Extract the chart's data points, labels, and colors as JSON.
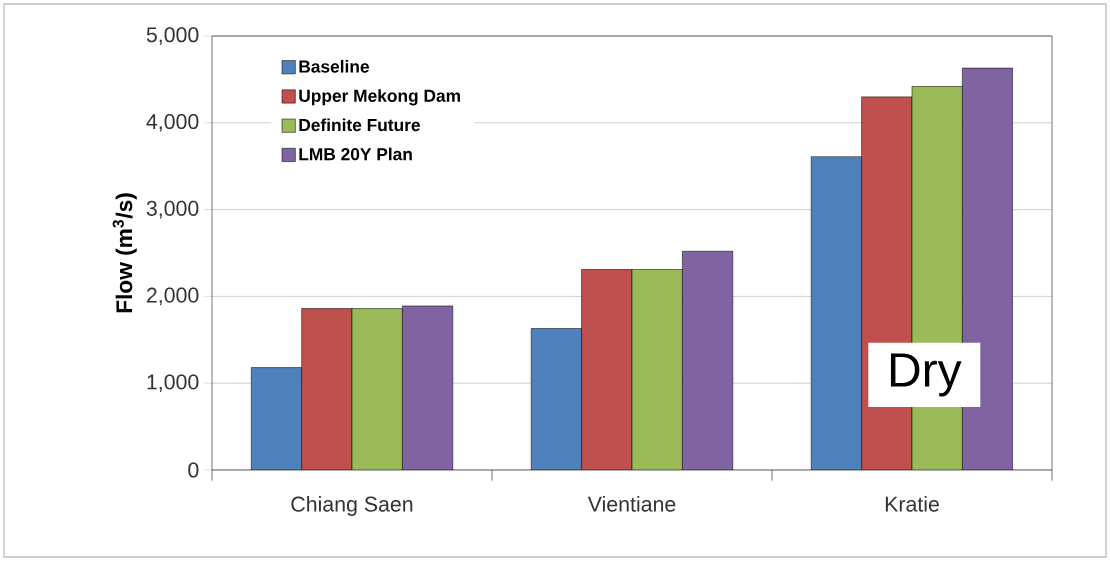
{
  "chart_data": {
    "type": "bar",
    "ylabel": "Flow (m$^{3}$/s)",
    "categories": [
      "Chiang Saen",
      "Vientiane",
      "Kratie"
    ],
    "series": [
      {
        "name": "Baseline",
        "color": "#4f81bd",
        "values": [
          1180,
          1630,
          3610
        ]
      },
      {
        "name": "Upper Mekong Dam",
        "color": "#c0504d",
        "values": [
          1860,
          2310,
          4300
        ]
      },
      {
        "name": "Definite Future",
        "color": "#9bbb59",
        "values": [
          1860,
          2310,
          4420
        ]
      },
      {
        "name": "LMB 20Y Plan",
        "color": "#8064a2",
        "values": [
          1890,
          2520,
          4630
        ]
      }
    ],
    "ylim": [
      0,
      5000
    ],
    "yticks": [
      0,
      {
        "value": 1000,
        "label": "1,000"
      },
      {
        "value": 2000,
        "label": "2,000"
      },
      {
        "value": 3000,
        "label": "3,000"
      },
      {
        "value": 4000,
        "label": "4,000"
      },
      {
        "value": 5000,
        "label": "5,000"
      }
    ],
    "grid": "y",
    "legend": "top left",
    "annotations": [
      "Dry"
    ]
  }
}
